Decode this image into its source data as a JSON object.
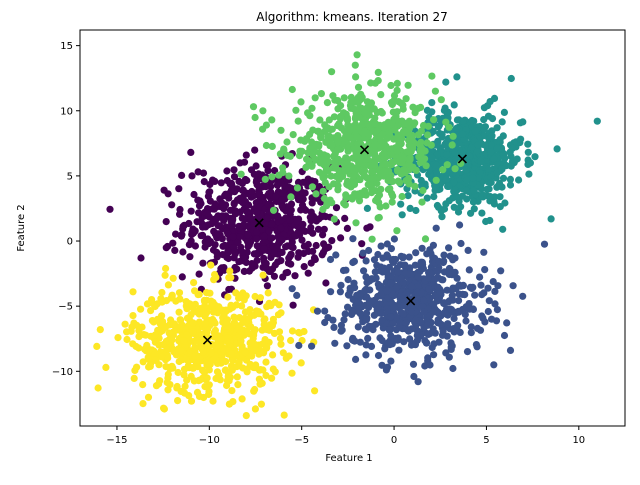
{
  "chart_data": {
    "type": "scatter",
    "title": "Algorithm: kmeans. Iteration 27",
    "xlabel": "Feature 1",
    "ylabel": "Feature 2",
    "xlim": [
      -17,
      12.5
    ],
    "ylim": [
      -14.2,
      16.2
    ],
    "xticks": [
      -15,
      -10,
      -5,
      0,
      5,
      10
    ],
    "yticks": [
      -10,
      -5,
      0,
      5,
      10,
      15
    ],
    "grid": false,
    "legend": "none",
    "clusters": [
      {
        "color": "#440154",
        "center": [
          -7.3,
          1.4
        ],
        "spread": [
          2.0,
          2.2
        ],
        "count": 650
      },
      {
        "color": "#3b528b",
        "center": [
          0.9,
          -4.6
        ],
        "spread": [
          2.0,
          2.0
        ],
        "count": 650
      },
      {
        "color": "#21918c",
        "center": [
          3.7,
          6.3
        ],
        "spread": [
          1.6,
          1.8
        ],
        "count": 650
      },
      {
        "color": "#5ec962",
        "center": [
          -1.6,
          7.0
        ],
        "spread": [
          2.0,
          2.0
        ],
        "count": 650
      },
      {
        "color": "#fde725",
        "center": [
          -10.1,
          -7.6
        ],
        "spread": [
          2.0,
          2.0
        ],
        "count": 650
      }
    ],
    "centroids": [
      {
        "x": -7.3,
        "y": 1.4
      },
      {
        "x": 0.9,
        "y": -4.6
      },
      {
        "x": 3.7,
        "y": 6.3
      },
      {
        "x": -1.6,
        "y": 7.0
      },
      {
        "x": -10.1,
        "y": -7.6
      }
    ],
    "outliers": [
      {
        "x": 11.0,
        "y": 9.2,
        "cluster": 2
      },
      {
        "x": 8.5,
        "y": 1.7,
        "cluster": 2
      },
      {
        "x": 3.4,
        "y": 12.6,
        "cluster": 2
      },
      {
        "x": 2.8,
        "y": 12.2,
        "cluster": 2
      },
      {
        "x": -2.0,
        "y": 14.3,
        "cluster": 3
      },
      {
        "x": -2.1,
        "y": 13.5,
        "cluster": 3
      },
      {
        "x": -7.1,
        "y": 10.0,
        "cluster": 3
      },
      {
        "x": -11.0,
        "y": 6.8,
        "cluster": 0
      },
      {
        "x": -8.0,
        "y": 6.6,
        "cluster": 0
      },
      {
        "x": -13.7,
        "y": -1.3,
        "cluster": 0
      },
      {
        "x": -15.9,
        "y": -6.8,
        "cluster": 4
      },
      {
        "x": -15.6,
        "y": -9.7,
        "cluster": 4
      },
      {
        "x": -8.0,
        "y": -13.4,
        "cluster": 4
      },
      {
        "x": -4.3,
        "y": -11.5,
        "cluster": 4
      },
      {
        "x": 1.3,
        "y": -10.8,
        "cluster": 1
      },
      {
        "x": 5.4,
        "y": -9.5,
        "cluster": 1
      },
      {
        "x": 6.3,
        "y": -8.4,
        "cluster": 1
      }
    ]
  }
}
